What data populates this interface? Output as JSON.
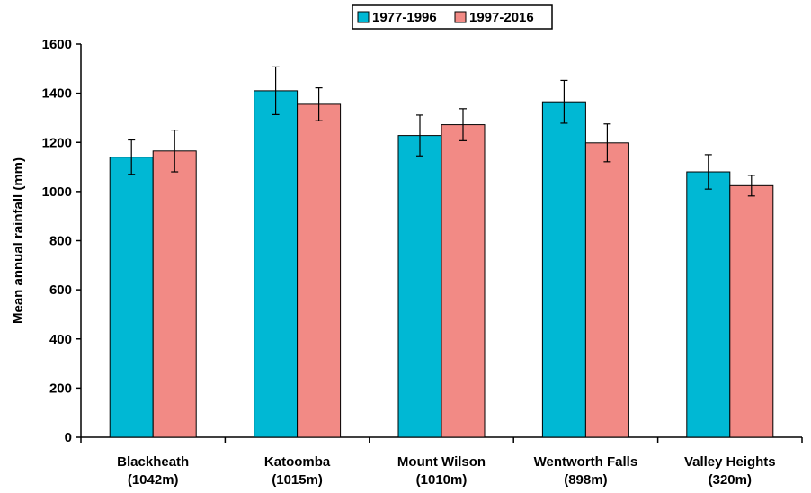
{
  "chart_data": {
    "type": "bar",
    "title": "",
    "xlabel": "",
    "ylabel": "Mean annual rainfall (mm)",
    "ylim": [
      0,
      1600
    ],
    "yticks": [
      0,
      200,
      400,
      600,
      800,
      1000,
      1200,
      1400,
      1600
    ],
    "grid": false,
    "legend_position": "top-center",
    "categories": [
      [
        "Blackheath",
        "(1042m)"
      ],
      [
        "Katoomba",
        "(1015m)"
      ],
      [
        "Mount Wilson",
        "(1010m)"
      ],
      [
        "Wentworth Falls",
        "(898m)"
      ],
      [
        "Valley Heights",
        "(320m)"
      ]
    ],
    "series": [
      {
        "name": "1977-1996",
        "color": "#00b8d4",
        "values": [
          1140,
          1410,
          1228,
          1365,
          1080
        ],
        "error": [
          70,
          97,
          83,
          87,
          70
        ]
      },
      {
        "name": "1997-2016",
        "color": "#f28a85",
        "values": [
          1165,
          1355,
          1272,
          1198,
          1024
        ],
        "error": [
          85,
          67,
          65,
          77,
          42
        ]
      }
    ]
  }
}
